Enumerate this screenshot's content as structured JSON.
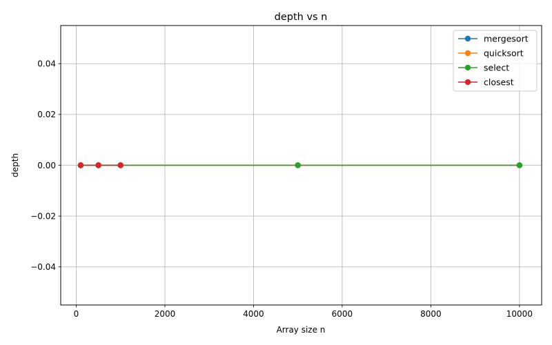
{
  "chart_data": {
    "type": "line",
    "title": "depth vs n",
    "xlabel": "Array size n",
    "ylabel": "depth",
    "xlim": [
      -350,
      10500
    ],
    "ylim": [
      -0.055,
      0.055
    ],
    "xticks": [
      0,
      2000,
      4000,
      6000,
      8000,
      10000
    ],
    "yticks": [
      -0.04,
      -0.02,
      0.0,
      0.02,
      0.04
    ],
    "xtick_labels": [
      "0",
      "2000",
      "4000",
      "6000",
      "8000",
      "10000"
    ],
    "ytick_labels": [
      "−0.04",
      "−0.02",
      "0.00",
      "0.02",
      "0.04"
    ],
    "grid": true,
    "legend_position": "top-right",
    "series": [
      {
        "name": "mergesort",
        "color": "#1f77b4",
        "x": [
          100,
          500,
          1000,
          5000,
          10000
        ],
        "y": [
          0,
          0,
          0,
          0,
          0
        ]
      },
      {
        "name": "quicksort",
        "color": "#ff7f0e",
        "x": [
          100,
          500,
          1000,
          5000,
          10000
        ],
        "y": [
          0,
          0,
          0,
          0,
          0
        ]
      },
      {
        "name": "select",
        "color": "#2ca02c",
        "x": [
          100,
          500,
          1000,
          5000,
          10000
        ],
        "y": [
          0,
          0,
          0,
          0,
          0
        ]
      },
      {
        "name": "closest",
        "color": "#d62728",
        "x": [
          100,
          500,
          1000
        ],
        "y": [
          0,
          0,
          0
        ]
      }
    ]
  }
}
